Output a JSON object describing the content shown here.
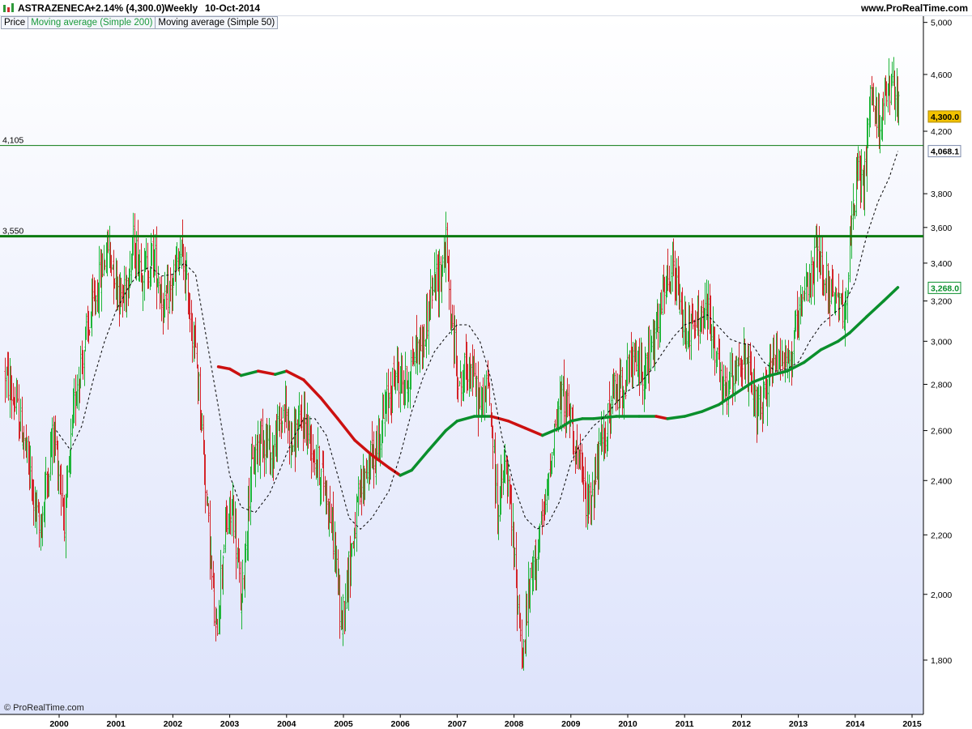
{
  "header": {
    "symbol": "ASTRAZENECA",
    "change": "+2.14% (4,300.0)",
    "period": "Weekly",
    "date": "10-Oct-2014",
    "site": "www.ProRealTime.com"
  },
  "legend": {
    "price": "Price",
    "ma200": "Moving average (Simple 200)",
    "ma50": "Moving average (Simple 50)"
  },
  "watermark": "© ProRealTime.com",
  "colors": {
    "up_candle": "#1fb53a",
    "down_candle": "#d4242a",
    "ma200_up": "#0a8f2c",
    "ma200_down": "#cc1010",
    "ma50": "#000000",
    "background_top": "#ffffff",
    "background_bottom": "#dde3fb",
    "hline": "#0a7a10",
    "last_price_badge": "#f2c200"
  },
  "chart_data": {
    "type": "candlestick",
    "x_axis": {
      "ticks": [
        "2000",
        "2001",
        "2002",
        "2003",
        "2004",
        "2005",
        "2006",
        "2007",
        "2008",
        "2009",
        "2010",
        "2011",
        "2012",
        "2013",
        "2014",
        "2015"
      ]
    },
    "y_axis": {
      "ticks": [
        "1,800",
        "2,000",
        "2,200",
        "2,400",
        "2,600",
        "2,800",
        "3,000",
        "3,200",
        "3,400",
        "3,600",
        "3,800",
        "4,200",
        "4,600",
        "5,000"
      ],
      "scale": "log",
      "range": [
        1650,
        5050
      ]
    },
    "horizontal_lines": [
      {
        "label": "4,105",
        "value": 4105,
        "style": "thin"
      },
      {
        "label": "3,550",
        "value": 3550,
        "style": "thick"
      }
    ],
    "value_badges": [
      {
        "label": "4,300.0",
        "value": 4300,
        "kind": "last-price"
      },
      {
        "label": "4,068.1",
        "value": 4068.1,
        "kind": "ma50"
      },
      {
        "label": "3,268.0",
        "value": 3268,
        "kind": "ma200"
      }
    ],
    "price_path": [
      [
        1999.05,
        2850
      ],
      [
        1999.35,
        2600
      ],
      [
        1999.65,
        2200
      ],
      [
        1999.9,
        2600
      ],
      [
        2000.1,
        2250
      ],
      [
        2000.3,
        2800
      ],
      [
        2000.5,
        3050
      ],
      [
        2000.7,
        3300
      ],
      [
        2000.85,
        3500
      ],
      [
        2001.1,
        3200
      ],
      [
        2001.3,
        3500
      ],
      [
        2001.5,
        3350
      ],
      [
        2001.65,
        3450
      ],
      [
        2001.85,
        3150
      ],
      [
        2002.0,
        3300
      ],
      [
        2002.15,
        3450
      ],
      [
        2002.3,
        3150
      ],
      [
        2002.45,
        2800
      ],
      [
        2002.6,
        2300
      ],
      [
        2002.75,
        1850
      ],
      [
        2002.9,
        2200
      ],
      [
        2003.05,
        2300
      ],
      [
        2003.2,
        1950
      ],
      [
        2003.35,
        2400
      ],
      [
        2003.55,
        2600
      ],
      [
        2003.75,
        2500
      ],
      [
        2003.95,
        2700
      ],
      [
        2004.1,
        2550
      ],
      [
        2004.3,
        2650
      ],
      [
        2004.5,
        2500
      ],
      [
        2004.7,
        2350
      ],
      [
        2004.85,
        2150
      ],
      [
        2004.95,
        1900
      ],
      [
        2005.1,
        2100
      ],
      [
        2005.25,
        2300
      ],
      [
        2005.4,
        2450
      ],
      [
        2005.55,
        2500
      ],
      [
        2005.75,
        2700
      ],
      [
        2005.9,
        2850
      ],
      [
        2006.1,
        2800
      ],
      [
        2006.25,
        2950
      ],
      [
        2006.4,
        3000
      ],
      [
        2006.55,
        3250
      ],
      [
        2006.7,
        3350
      ],
      [
        2006.8,
        3500
      ],
      [
        2006.9,
        3050
      ],
      [
        2007.05,
        2800
      ],
      [
        2007.2,
        2900
      ],
      [
        2007.4,
        2700
      ],
      [
        2007.55,
        2800
      ],
      [
        2007.7,
        2300
      ],
      [
        2007.85,
        2450
      ],
      [
        2007.95,
        2250
      ],
      [
        2008.05,
        2000
      ],
      [
        2008.15,
        1800
      ],
      [
        2008.25,
        2000
      ],
      [
        2008.4,
        2150
      ],
      [
        2008.55,
        2300
      ],
      [
        2008.7,
        2600
      ],
      [
        2008.85,
        2750
      ],
      [
        2009.0,
        2650
      ],
      [
        2009.15,
        2450
      ],
      [
        2009.3,
        2300
      ],
      [
        2009.45,
        2450
      ],
      [
        2009.6,
        2600
      ],
      [
        2009.75,
        2750
      ],
      [
        2009.9,
        2800
      ],
      [
        2010.1,
        2900
      ],
      [
        2010.3,
        2850
      ],
      [
        2010.5,
        3050
      ],
      [
        2010.65,
        3250
      ],
      [
        2010.8,
        3350
      ],
      [
        2010.95,
        3100
      ],
      [
        2011.1,
        3050
      ],
      [
        2011.25,
        3100
      ],
      [
        2011.4,
        3150
      ],
      [
        2011.55,
        2950
      ],
      [
        2011.65,
        2750
      ],
      [
        2011.8,
        2800
      ],
      [
        2011.95,
        2950
      ],
      [
        2012.1,
        2850
      ],
      [
        2012.25,
        2700
      ],
      [
        2012.35,
        2650
      ],
      [
        2012.5,
        2900
      ],
      [
        2012.7,
        2950
      ],
      [
        2012.85,
        2900
      ],
      [
        2013.0,
        3100
      ],
      [
        2013.15,
        3250
      ],
      [
        2013.3,
        3450
      ],
      [
        2013.45,
        3350
      ],
      [
        2013.6,
        3200
      ],
      [
        2013.75,
        3150
      ],
      [
        2013.85,
        3250
      ],
      [
        2013.95,
        3650
      ],
      [
        2014.05,
        3950
      ],
      [
        2014.15,
        3800
      ],
      [
        2014.25,
        4500
      ],
      [
        2014.35,
        4300
      ],
      [
        2014.5,
        4350
      ],
      [
        2014.6,
        4500
      ],
      [
        2014.7,
        4450
      ],
      [
        2014.78,
        4300
      ]
    ],
    "ma200": [
      [
        2002.8,
        2880
      ],
      [
        2003.0,
        2870
      ],
      [
        2003.2,
        2840
      ],
      [
        2003.5,
        2860
      ],
      [
        2003.8,
        2845
      ],
      [
        2004.0,
        2860
      ],
      [
        2004.3,
        2820
      ],
      [
        2004.6,
        2740
      ],
      [
        2004.9,
        2650
      ],
      [
        2005.2,
        2560
      ],
      [
        2005.5,
        2500
      ],
      [
        2005.8,
        2450
      ],
      [
        2006.0,
        2420
      ],
      [
        2006.2,
        2440
      ],
      [
        2006.5,
        2520
      ],
      [
        2006.8,
        2600
      ],
      [
        2007.0,
        2640
      ],
      [
        2007.3,
        2660
      ],
      [
        2007.6,
        2660
      ],
      [
        2007.9,
        2640
      ],
      [
        2008.2,
        2610
      ],
      [
        2008.5,
        2580
      ],
      [
        2008.8,
        2610
      ],
      [
        2009.0,
        2640
      ],
      [
        2009.2,
        2650
      ],
      [
        2009.4,
        2650
      ],
      [
        2009.8,
        2660
      ],
      [
        2010.2,
        2660
      ],
      [
        2010.5,
        2660
      ],
      [
        2010.7,
        2650
      ],
      [
        2011.0,
        2660
      ],
      [
        2011.3,
        2680
      ],
      [
        2011.6,
        2710
      ],
      [
        2011.9,
        2760
      ],
      [
        2012.2,
        2810
      ],
      [
        2012.5,
        2840
      ],
      [
        2012.8,
        2860
      ],
      [
        2013.1,
        2900
      ],
      [
        2013.4,
        2960
      ],
      [
        2013.7,
        3000
      ],
      [
        2013.9,
        3040
      ],
      [
        2014.2,
        3120
      ],
      [
        2014.5,
        3200
      ],
      [
        2014.75,
        3270
      ]
    ],
    "ma50": [
      [
        1999.95,
        2600
      ],
      [
        2000.2,
        2520
      ],
      [
        2000.4,
        2620
      ],
      [
        2000.6,
        2820
      ],
      [
        2000.8,
        3000
      ],
      [
        2001.0,
        3150
      ],
      [
        2001.2,
        3260
      ],
      [
        2001.4,
        3350
      ],
      [
        2001.6,
        3380
      ],
      [
        2001.8,
        3330
      ],
      [
        2002.0,
        3340
      ],
      [
        2002.2,
        3400
      ],
      [
        2002.4,
        3340
      ],
      [
        2002.6,
        3000
      ],
      [
        2002.8,
        2700
      ],
      [
        2003.0,
        2420
      ],
      [
        2003.2,
        2300
      ],
      [
        2003.45,
        2280
      ],
      [
        2003.7,
        2350
      ],
      [
        2003.9,
        2450
      ],
      [
        2004.1,
        2560
      ],
      [
        2004.3,
        2650
      ],
      [
        2004.5,
        2650
      ],
      [
        2004.7,
        2580
      ],
      [
        2004.9,
        2420
      ],
      [
        2005.1,
        2260
      ],
      [
        2005.3,
        2220
      ],
      [
        2005.5,
        2260
      ],
      [
        2005.8,
        2360
      ],
      [
        2006.0,
        2500
      ],
      [
        2006.2,
        2680
      ],
      [
        2006.4,
        2830
      ],
      [
        2006.6,
        2950
      ],
      [
        2006.8,
        3020
      ],
      [
        2007.0,
        3080
      ],
      [
        2007.2,
        3080
      ],
      [
        2007.4,
        3000
      ],
      [
        2007.6,
        2820
      ],
      [
        2007.8,
        2560
      ],
      [
        2008.0,
        2380
      ],
      [
        2008.2,
        2260
      ],
      [
        2008.4,
        2220
      ],
      [
        2008.6,
        2240
      ],
      [
        2008.8,
        2320
      ],
      [
        2009.0,
        2470
      ],
      [
        2009.2,
        2560
      ],
      [
        2009.4,
        2620
      ],
      [
        2009.6,
        2660
      ],
      [
        2009.8,
        2720
      ],
      [
        2010.0,
        2770
      ],
      [
        2010.2,
        2800
      ],
      [
        2010.4,
        2860
      ],
      [
        2010.6,
        2940
      ],
      [
        2010.8,
        3020
      ],
      [
        2011.0,
        3080
      ],
      [
        2011.2,
        3100
      ],
      [
        2011.4,
        3130
      ],
      [
        2011.6,
        3070
      ],
      [
        2011.8,
        3010
      ],
      [
        2012.0,
        2990
      ],
      [
        2012.2,
        2980
      ],
      [
        2012.4,
        2900
      ],
      [
        2012.6,
        2860
      ],
      [
        2012.8,
        2870
      ],
      [
        2013.0,
        2900
      ],
      [
        2013.2,
        3000
      ],
      [
        2013.4,
        3080
      ],
      [
        2013.6,
        3130
      ],
      [
        2013.8,
        3180
      ],
      [
        2014.0,
        3300
      ],
      [
        2014.2,
        3550
      ],
      [
        2014.4,
        3750
      ],
      [
        2014.6,
        3900
      ],
      [
        2014.75,
        4068
      ]
    ]
  }
}
